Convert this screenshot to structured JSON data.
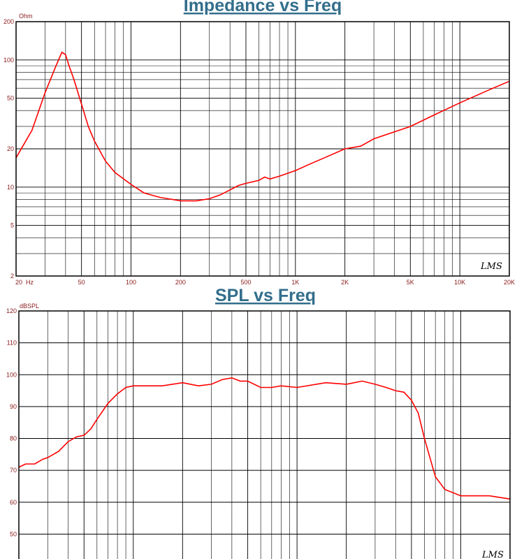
{
  "colors": {
    "curve": "#ff0000",
    "grid": "#000000",
    "title": "#336e8c",
    "tick_label": "#8b1a1a"
  },
  "chart_data": [
    {
      "type": "line",
      "title": "Impedance vs Freq",
      "ylabel": "Ohm",
      "x_unit": "Hz",
      "x_scale": "log",
      "y_scale": "log",
      "xlim": [
        20,
        20000
      ],
      "ylim": [
        2,
        200
      ],
      "grid": true,
      "signature": "LMS",
      "x_ticks": [
        {
          "v": 20,
          "label": "20"
        },
        {
          "v": 50,
          "label": "50"
        },
        {
          "v": 100,
          "label": "100"
        },
        {
          "v": 200,
          "label": "200"
        },
        {
          "v": 500,
          "label": "500"
        },
        {
          "v": 1000,
          "label": "1K"
        },
        {
          "v": 2000,
          "label": "2K"
        },
        {
          "v": 5000,
          "label": "5K"
        },
        {
          "v": 10000,
          "label": "10K"
        },
        {
          "v": 20000,
          "label": "20K"
        }
      ],
      "y_ticks": [
        {
          "v": 200,
          "label": "200"
        },
        {
          "v": 100,
          "label": "100"
        },
        {
          "v": 50,
          "label": "50"
        },
        {
          "v": 20,
          "label": "20"
        },
        {
          "v": 10,
          "label": "10"
        },
        {
          "v": 5,
          "label": "5"
        },
        {
          "v": 2,
          "label": "2"
        }
      ],
      "series": [
        {
          "x": [
            20,
            25,
            30,
            35,
            38,
            40,
            42,
            45,
            50,
            55,
            60,
            70,
            80,
            100,
            120,
            150,
            200,
            250,
            300,
            350,
            400,
            450,
            500,
            600,
            650,
            700,
            800,
            1000,
            1200,
            1500,
            2000,
            2500,
            3000,
            5000,
            7000,
            10000,
            15000,
            20000
          ],
          "y": [
            17,
            28,
            55,
            90,
            115,
            110,
            90,
            70,
            45,
            30,
            23,
            16,
            13,
            10.5,
            9,
            8.3,
            7.8,
            7.8,
            8.1,
            8.7,
            9.5,
            10.3,
            10.7,
            11.3,
            12,
            11.6,
            12.2,
            13.5,
            15,
            17,
            20,
            21,
            24,
            30,
            37,
            46,
            58,
            68
          ]
        }
      ]
    },
    {
      "type": "line",
      "title": "SPL vs Freq",
      "ylabel": "dBSPL",
      "x_scale": "log",
      "xlim": [
        20,
        20000
      ],
      "ylim": [
        40,
        120
      ],
      "grid": true,
      "signature": "LMS",
      "y_ticks": [
        {
          "v": 120,
          "label": "120"
        },
        {
          "v": 110,
          "label": "110"
        },
        {
          "v": 100,
          "label": "100"
        },
        {
          "v": 90,
          "label": "90"
        },
        {
          "v": 80,
          "label": "80"
        },
        {
          "v": 70,
          "label": "70"
        },
        {
          "v": 60,
          "label": "60"
        },
        {
          "v": 50,
          "label": "50"
        }
      ],
      "series": [
        {
          "x": [
            20,
            22,
            25,
            28,
            30,
            35,
            40,
            45,
            50,
            55,
            60,
            70,
            80,
            90,
            100,
            120,
            150,
            200,
            250,
            300,
            350,
            400,
            450,
            500,
            600,
            700,
            800,
            1000,
            1500,
            2000,
            2500,
            3000,
            3500,
            4000,
            4500,
            5000,
            5500,
            6000,
            7000,
            8000,
            10000,
            12000,
            15000,
            20000
          ],
          "y": [
            71,
            72,
            72,
            73.5,
            74,
            76,
            79,
            80.5,
            81,
            83,
            86,
            91,
            94,
            96,
            96.5,
            96.5,
            96.5,
            97.5,
            96.5,
            97,
            98.5,
            99,
            98,
            98,
            96,
            96,
            96.5,
            96,
            97.5,
            97,
            98,
            97,
            96,
            95,
            94.5,
            92,
            88,
            80,
            68,
            64,
            62,
            62,
            62,
            61
          ]
        }
      ]
    }
  ]
}
